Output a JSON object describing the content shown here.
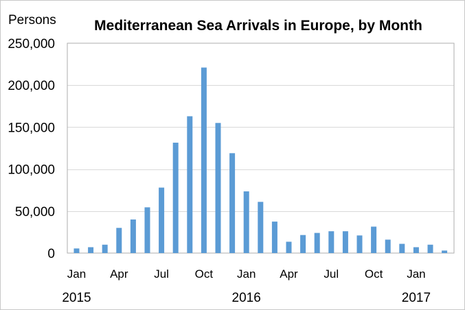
{
  "chart_data": {
    "type": "bar",
    "title": "Mediterranean Sea Arrivals in Europe, by Month",
    "ylabel": "Persons",
    "xlabel": "",
    "ylim": [
      0,
      250000
    ],
    "yticks": [
      "0",
      "50,000",
      "100,000",
      "150,000",
      "200,000",
      "250,000"
    ],
    "ytick_values": [
      0,
      50000,
      100000,
      150000,
      200000,
      250000
    ],
    "grid": true,
    "bar_color": "#5b9bd5",
    "categories": [
      "2015-01",
      "2015-02",
      "2015-03",
      "2015-04",
      "2015-05",
      "2015-06",
      "2015-07",
      "2015-08",
      "2015-09",
      "2015-10",
      "2015-11",
      "2015-12",
      "2016-01",
      "2016-02",
      "2016-03",
      "2016-04",
      "2016-05",
      "2016-06",
      "2016-07",
      "2016-08",
      "2016-09",
      "2016-10",
      "2016-11",
      "2016-12",
      "2017-01",
      "2017-02",
      "2017-03"
    ],
    "values": [
      5500,
      7000,
      10000,
      30000,
      40000,
      54500,
      78000,
      131500,
      163000,
      221000,
      155000,
      119000,
      73500,
      61000,
      37500,
      13500,
      21500,
      24000,
      26000,
      26000,
      21000,
      31500,
      16000,
      11000,
      7000,
      10000,
      3000
    ],
    "xtick_labels": [
      {
        "index": 0,
        "label": "Jan"
      },
      {
        "index": 3,
        "label": "Apr"
      },
      {
        "index": 6,
        "label": "Jul"
      },
      {
        "index": 9,
        "label": "Oct"
      },
      {
        "index": 12,
        "label": "Jan"
      },
      {
        "index": 15,
        "label": "Apr"
      },
      {
        "index": 18,
        "label": "Jul"
      },
      {
        "index": 21,
        "label": "Oct"
      },
      {
        "index": 24,
        "label": "Jan"
      }
    ],
    "year_labels": [
      {
        "index": 0,
        "label": "2015"
      },
      {
        "index": 12,
        "label": "2016"
      },
      {
        "index": 24,
        "label": "2017"
      }
    ]
  }
}
